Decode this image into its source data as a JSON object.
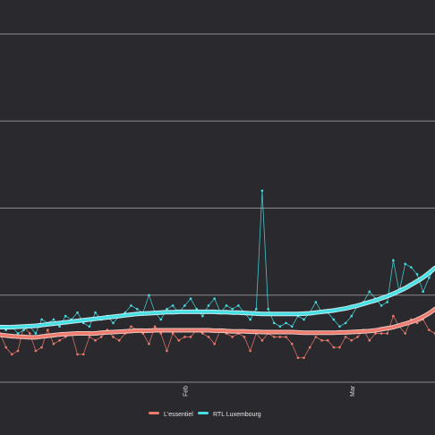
{
  "colors": {
    "background": "#2a292e",
    "grid": "#8c8c8c",
    "lessentiel": "#f07a6c",
    "rtl": "#44e0e6",
    "lessentiel_glow": "#ffd6cf",
    "rtl_glow": "#d6ffff"
  },
  "chart_data": {
    "type": "line",
    "x_ticks": [
      "Feb",
      "Mar"
    ],
    "x_tick_days": [
      31,
      59
    ],
    "y_range": [
      0,
      100
    ],
    "gridlines": [
      0,
      25,
      50,
      75,
      100
    ],
    "grid": true,
    "legend_position": "bottom",
    "series": [
      {
        "name": "L'essentiel",
        "color_key": "lessentiel",
        "x": [
          0,
          1,
          2,
          3,
          4,
          5,
          6,
          7,
          8,
          9,
          10,
          11,
          12,
          13,
          14,
          15,
          16,
          17,
          18,
          19,
          20,
          21,
          22,
          23,
          24,
          25,
          26,
          27,
          28,
          29,
          30,
          31,
          32,
          33,
          34,
          35,
          36,
          37,
          38,
          39,
          40,
          41,
          42,
          43,
          44,
          45,
          46,
          47,
          48,
          49,
          50,
          51,
          52,
          53,
          54,
          55,
          56,
          57,
          58,
          59,
          60,
          61,
          62,
          63,
          64,
          65,
          66,
          67,
          68,
          69,
          70,
          71,
          72,
          73
        ],
        "values": [
          14,
          10,
          8,
          9,
          16,
          14,
          9,
          10,
          15,
          11,
          12,
          13,
          14,
          8,
          8,
          13,
          12,
          13,
          15,
          13,
          12,
          14,
          16,
          15,
          14,
          11,
          16,
          14,
          9,
          14,
          12,
          13,
          13,
          15,
          14,
          13,
          11,
          15,
          14,
          13,
          14,
          13,
          9,
          14,
          12,
          14,
          13,
          13,
          13,
          11,
          7,
          7,
          10,
          13,
          12,
          12,
          10,
          10,
          13,
          12,
          13,
          15,
          12,
          14,
          14,
          14,
          19,
          16,
          14,
          18,
          17,
          18,
          15,
          14
        ],
        "trend": [
          13.6,
          13.4,
          13.2,
          13.1,
          13,
          12.9,
          12.9,
          13.1,
          13.3,
          13.5,
          13.7,
          13.8,
          13.9,
          14,
          14,
          14,
          14,
          14.2,
          14.3,
          14.4,
          14.5,
          14.6,
          14.7,
          14.8,
          14.8,
          14.8,
          14.9,
          14.9,
          14.9,
          14.9,
          14.9,
          14.9,
          14.9,
          14.9,
          14.9,
          14.9,
          14.8,
          14.8,
          14.7,
          14.6,
          14.6,
          14.6,
          14.5,
          14.5,
          14.4,
          14.4,
          14.4,
          14.4,
          14.4,
          14.4,
          14.3,
          14.2,
          14.2,
          14.2,
          14.2,
          14.2,
          14.2,
          14.3,
          14.3,
          14.4,
          14.5,
          14.6,
          14.7,
          14.9,
          15.2,
          15.5,
          15.8,
          16.3,
          16.8,
          17.3,
          18,
          18.8,
          19.8,
          21
        ]
      },
      {
        "name": "RTL Luxembourg",
        "color_key": "rtl",
        "x": [
          0,
          1,
          2,
          3,
          4,
          5,
          6,
          7,
          8,
          9,
          10,
          11,
          12,
          13,
          14,
          15,
          16,
          17,
          18,
          19,
          20,
          21,
          22,
          23,
          24,
          25,
          26,
          27,
          28,
          29,
          30,
          31,
          32,
          33,
          34,
          35,
          36,
          37,
          38,
          39,
          40,
          41,
          42,
          43,
          44,
          45,
          46,
          47,
          48,
          49,
          50,
          51,
          52,
          53,
          54,
          55,
          56,
          57,
          58,
          59,
          60,
          61,
          62,
          63,
          64,
          65,
          66,
          67,
          68,
          69,
          70,
          71,
          72,
          73
        ],
        "values": [
          16,
          15,
          16,
          14,
          15,
          16,
          14,
          18,
          17,
          18,
          16,
          19,
          18,
          20,
          17,
          16,
          20,
          18,
          19,
          17,
          19,
          20,
          22,
          21,
          20,
          25,
          20,
          18,
          21,
          22,
          20,
          22,
          24,
          21,
          19,
          22,
          24,
          20,
          22,
          21,
          22,
          20,
          18,
          21,
          55,
          21,
          17,
          16,
          17,
          16,
          19,
          18,
          20,
          23,
          20,
          20,
          18,
          16,
          17,
          19,
          22,
          23,
          26,
          24,
          22,
          23,
          35,
          26,
          34,
          33,
          31,
          26,
          30,
          33
        ],
        "trend": [
          15.8,
          15.8,
          15.8,
          15.9,
          16,
          16.1,
          16.2,
          16.4,
          16.6,
          16.8,
          17,
          17.2,
          17.4,
          17.6,
          17.8,
          18,
          18.2,
          18.4,
          18.6,
          18.8,
          19,
          19.2,
          19.4,
          19.6,
          19.7,
          19.8,
          19.9,
          20,
          20.1,
          20.1,
          20.2,
          20.2,
          20.2,
          20.2,
          20.2,
          20.2,
          20.2,
          20.1,
          20.1,
          20,
          20,
          19.9,
          19.8,
          19.7,
          19.6,
          19.6,
          19.6,
          19.6,
          19.6,
          19.6,
          19.6,
          19.7,
          19.8,
          20,
          20.2,
          20.4,
          20.6,
          20.9,
          21.2,
          21.6,
          22,
          22.5,
          23,
          23.5,
          24.1,
          24.7,
          25.4,
          26.2,
          27,
          28,
          29,
          30.1,
          31.4,
          32.8
        ]
      }
    ]
  },
  "legend": [
    {
      "label": "L'essentiel",
      "color_key": "lessentiel"
    },
    {
      "label": "RTL Luxembourg",
      "color_key": "rtl"
    }
  ]
}
